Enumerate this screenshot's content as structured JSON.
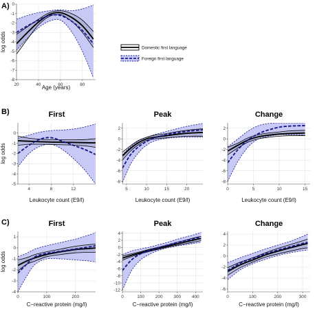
{
  "figure": {
    "panel_labels": [
      "A)",
      "B)",
      "C)"
    ],
    "colors": {
      "domestic": "#000000",
      "foreign": "#1a1a8c",
      "band": "#c8caf5"
    }
  },
  "legend": {
    "domestic_label": "Domestic first language",
    "foreign_label": "Foreign first language"
  },
  "chart_data": [
    {
      "id": "A",
      "type": "line",
      "title": "",
      "xlabel": "Age (years)",
      "ylabel": "log odds",
      "xlim": [
        20,
        92
      ],
      "ylim": [
        -8,
        0
      ],
      "xticks": [
        20,
        40,
        60,
        80
      ],
      "yticks": [
        0,
        -1,
        -2,
        -3,
        -4,
        -5,
        -6,
        -7,
        -8
      ],
      "series": [
        {
          "name": "Domestic first language",
          "style": "solid",
          "x": [
            20,
            30,
            40,
            50,
            60,
            70,
            80,
            90
          ],
          "y": [
            -4.2,
            -3.0,
            -1.9,
            -1.1,
            -0.9,
            -1.4,
            -2.3,
            -3.7
          ],
          "lower": [
            -5.3,
            -3.7,
            -2.2,
            -1.3,
            -1.1,
            -1.8,
            -3.0,
            -4.6
          ],
          "upper": [
            -3.2,
            -2.4,
            -1.6,
            -0.9,
            -0.7,
            -1.0,
            -1.7,
            -2.9
          ]
        },
        {
          "name": "Foreign first language",
          "style": "dashed",
          "x": [
            20,
            30,
            40,
            50,
            60,
            70,
            80,
            90
          ],
          "y": [
            -3.0,
            -2.3,
            -1.7,
            -1.2,
            -1.2,
            -1.8,
            -2.8,
            -4.2
          ],
          "lower": [
            -4.9,
            -3.6,
            -2.5,
            -1.8,
            -1.7,
            -2.9,
            -5.0,
            -7.8
          ],
          "upper": [
            -1.6,
            -1.2,
            -0.9,
            -0.7,
            -0.6,
            -0.7,
            -0.5,
            -0.1
          ]
        }
      ]
    },
    {
      "id": "B1",
      "type": "line",
      "title": "First",
      "xlabel": "Leukocyte count (E9/l)",
      "ylabel": "log odds",
      "xlim": [
        2,
        16
      ],
      "ylim": [
        -5,
        1
      ],
      "xticks": [
        4,
        8,
        12
      ],
      "yticks": [
        0,
        -1,
        -2,
        -3,
        -4,
        -5
      ],
      "series": [
        {
          "name": "Domestic first language",
          "style": "solid",
          "x": [
            2,
            4,
            6,
            8,
            10,
            12,
            14,
            16
          ],
          "y": [
            -0.75,
            -0.8,
            -0.85,
            -0.88,
            -0.9,
            -0.92,
            -0.94,
            -0.96
          ],
          "lower": [
            -1.2,
            -1.1,
            -1.1,
            -1.12,
            -1.15,
            -1.18,
            -1.25,
            -1.4
          ],
          "upper": [
            -0.3,
            -0.5,
            -0.6,
            -0.65,
            -0.66,
            -0.66,
            -0.64,
            -0.55
          ]
        },
        {
          "name": "Foreign first language",
          "style": "dashed",
          "x": [
            2,
            4,
            6,
            8,
            10,
            12,
            14,
            16
          ],
          "y": [
            -2.0,
            -1.2,
            -0.6,
            -0.45,
            -0.8,
            -1.2,
            -1.6,
            -2.1
          ],
          "lower": [
            -3.3,
            -2.0,
            -1.3,
            -1.1,
            -1.6,
            -2.5,
            -3.6,
            -5.0
          ],
          "upper": [
            -0.5,
            -0.2,
            0.1,
            0.25,
            0.3,
            0.4,
            0.6,
            0.9
          ]
        }
      ]
    },
    {
      "id": "B2",
      "type": "line",
      "title": "Peak",
      "xlabel": "Leukocyte count (E9/l)",
      "ylabel": "",
      "xlim": [
        4,
        24
      ],
      "ylim": [
        -8.5,
        3
      ],
      "xticks": [
        5,
        10,
        15,
        20
      ],
      "yticks": [
        2,
        0,
        -2,
        -4,
        -6,
        -8
      ],
      "series": [
        {
          "name": "Domestic first language",
          "style": "solid",
          "x": [
            4,
            6,
            8,
            10,
            12,
            15,
            18,
            21,
            24
          ],
          "y": [
            -3.2,
            -1.8,
            -0.7,
            0.0,
            0.3,
            0.6,
            0.9,
            1.1,
            1.2
          ],
          "lower": [
            -4.0,
            -2.3,
            -1.1,
            -0.3,
            0.0,
            0.2,
            0.4,
            0.5,
            0.5
          ],
          "upper": [
            -2.5,
            -1.3,
            -0.3,
            0.3,
            0.7,
            1.0,
            1.4,
            1.7,
            1.9
          ]
        },
        {
          "name": "Foreign first language",
          "style": "dashed",
          "x": [
            4,
            6,
            8,
            10,
            12,
            15,
            18,
            21,
            24
          ],
          "y": [
            -5.5,
            -3.0,
            -1.5,
            -0.5,
            0.2,
            0.8,
            1.2,
            1.5,
            1.7
          ],
          "lower": [
            -8.2,
            -4.8,
            -2.6,
            -1.2,
            -0.4,
            0.1,
            0.3,
            0.3,
            0.3
          ],
          "upper": [
            -3.0,
            -1.5,
            -0.4,
            0.3,
            0.8,
            1.4,
            2.0,
            2.5,
            2.9
          ]
        }
      ]
    },
    {
      "id": "B3",
      "type": "line",
      "title": "Change",
      "xlabel": "Leukocyte count (E9/l)",
      "ylabel": "",
      "xlim": [
        0,
        16
      ],
      "ylim": [
        -8.5,
        3
      ],
      "xticks": [
        0,
        5,
        10,
        15
      ],
      "yticks": [
        2,
        0,
        -2,
        -4,
        -6,
        -8
      ],
      "series": [
        {
          "name": "Domestic first language",
          "style": "solid",
          "x": [
            0,
            2,
            4,
            6,
            8,
            10,
            12,
            15
          ],
          "y": [
            -2.3,
            -1.2,
            -0.2,
            0.4,
            0.7,
            0.9,
            1.0,
            1.1
          ],
          "lower": [
            -3.0,
            -1.7,
            -0.6,
            0.0,
            0.3,
            0.5,
            0.6,
            0.6
          ],
          "upper": [
            -1.6,
            -0.8,
            0.2,
            0.8,
            1.1,
            1.3,
            1.5,
            1.6
          ]
        },
        {
          "name": "Foreign first language",
          "style": "dashed",
          "x": [
            0,
            2,
            4,
            6,
            8,
            10,
            12,
            15
          ],
          "y": [
            -4.5,
            -2.0,
            -0.2,
            1.0,
            1.7,
            2.2,
            2.4,
            2.5
          ],
          "lower": [
            -8.0,
            -4.2,
            -1.5,
            0.0,
            0.5,
            0.8,
            0.8,
            0.7
          ],
          "upper": [
            -1.5,
            0.0,
            1.5,
            2.5,
            2.9,
            3.0,
            3.0,
            3.0
          ]
        }
      ]
    },
    {
      "id": "C1",
      "type": "line",
      "title": "First",
      "xlabel": "C−reactive protein (mg/l)",
      "ylabel": "log odds",
      "xlim": [
        0,
        270
      ],
      "ylim": [
        -4,
        1.5
      ],
      "xticks": [
        0,
        100,
        200
      ],
      "yticks": [
        1,
        0,
        -1,
        -2,
        -3,
        -4
      ],
      "series": [
        {
          "name": "Domestic first language",
          "style": "solid",
          "x": [
            0,
            30,
            60,
            100,
            150,
            200,
            250,
            270
          ],
          "y": [
            -1.6,
            -1.2,
            -0.9,
            -0.6,
            -0.35,
            -0.15,
            -0.05,
            0.0
          ],
          "lower": [
            -2.1,
            -1.5,
            -1.2,
            -0.8,
            -0.6,
            -0.45,
            -0.4,
            -0.4
          ],
          "upper": [
            -1.1,
            -0.9,
            -0.6,
            -0.35,
            -0.1,
            0.15,
            0.3,
            0.35
          ]
        },
        {
          "name": "Foreign first language",
          "style": "dashed",
          "x": [
            0,
            30,
            60,
            100,
            150,
            200,
            250,
            270
          ],
          "y": [
            -2.3,
            -1.5,
            -0.8,
            -0.5,
            -0.3,
            -0.1,
            0.1,
            0.2
          ],
          "lower": [
            -4.0,
            -2.6,
            -1.5,
            -1.0,
            -1.0,
            -1.1,
            -1.2,
            -1.3
          ],
          "upper": [
            -0.8,
            -0.5,
            -0.1,
            0.2,
            0.5,
            0.8,
            1.2,
            1.4
          ]
        }
      ]
    },
    {
      "id": "C2",
      "type": "line",
      "title": "Peak",
      "xlabel": "C−reactive protein (mg/l)",
      "ylabel": "",
      "xlim": [
        0,
        440
      ],
      "ylim": [
        -12.5,
        4.5
      ],
      "xticks": [
        0,
        100,
        200,
        300,
        400
      ],
      "yticks": [
        4,
        2,
        0,
        -2,
        -4,
        -6,
        -8,
        -10,
        -12
      ],
      "series": [
        {
          "name": "Domestic first language",
          "style": "solid",
          "x": [
            0,
            50,
            100,
            150,
            200,
            250,
            300,
            350,
            400,
            430
          ],
          "y": [
            -3.0,
            -2.2,
            -1.5,
            -0.8,
            -0.2,
            0.4,
            1.0,
            1.6,
            2.2,
            2.5
          ],
          "lower": [
            -3.6,
            -2.6,
            -1.8,
            -1.1,
            -0.5,
            0.1,
            0.6,
            1.1,
            1.6,
            1.9
          ],
          "upper": [
            -2.4,
            -1.8,
            -1.2,
            -0.5,
            0.1,
            0.7,
            1.4,
            2.1,
            2.8,
            3.1
          ]
        },
        {
          "name": "Foreign first language",
          "style": "dashed",
          "x": [
            0,
            50,
            100,
            150,
            200,
            250,
            300,
            350,
            400,
            430
          ],
          "y": [
            -6.5,
            -3.5,
            -1.8,
            -0.9,
            0.0,
            0.7,
            1.4,
            2.0,
            2.6,
            3.0
          ],
          "lower": [
            -12.0,
            -6.5,
            -3.5,
            -1.9,
            -0.8,
            -0.1,
            0.4,
            0.8,
            1.2,
            1.4
          ],
          "upper": [
            -2.0,
            -1.0,
            -0.4,
            0.1,
            0.8,
            1.5,
            2.3,
            3.0,
            3.7,
            4.2
          ]
        }
      ]
    },
    {
      "id": "C3",
      "type": "line",
      "title": "Change",
      "xlabel": "C−reactive protein (mg/l)",
      "ylabel": "",
      "xlim": [
        0,
        330
      ],
      "ylim": [
        -6.5,
        4.5
      ],
      "xticks": [
        0,
        100,
        200,
        300
      ],
      "yticks": [
        4,
        2,
        0,
        -2,
        -4,
        -6
      ],
      "series": [
        {
          "name": "Domestic first language",
          "style": "solid",
          "x": [
            0,
            50,
            100,
            150,
            200,
            250,
            300,
            320
          ],
          "y": [
            -2.8,
            -1.6,
            -0.7,
            0.2,
            0.9,
            1.5,
            2.1,
            2.3
          ],
          "lower": [
            -3.5,
            -2.1,
            -1.1,
            -0.2,
            0.4,
            0.9,
            1.4,
            1.5
          ],
          "upper": [
            -2.1,
            -1.1,
            -0.3,
            0.6,
            1.4,
            2.1,
            2.8,
            3.1
          ]
        },
        {
          "name": "Foreign first language",
          "style": "dashed",
          "x": [
            0,
            50,
            100,
            150,
            200,
            250,
            300,
            320
          ],
          "y": [
            -2.6,
            -1.3,
            -0.4,
            0.4,
            1.1,
            1.7,
            2.3,
            2.5
          ],
          "lower": [
            -4.3,
            -2.5,
            -1.4,
            -0.6,
            0.1,
            0.6,
            1.0,
            1.1
          ],
          "upper": [
            -1.2,
            -0.3,
            0.5,
            1.3,
            2.0,
            2.7,
            3.6,
            4.0
          ]
        }
      ]
    }
  ]
}
